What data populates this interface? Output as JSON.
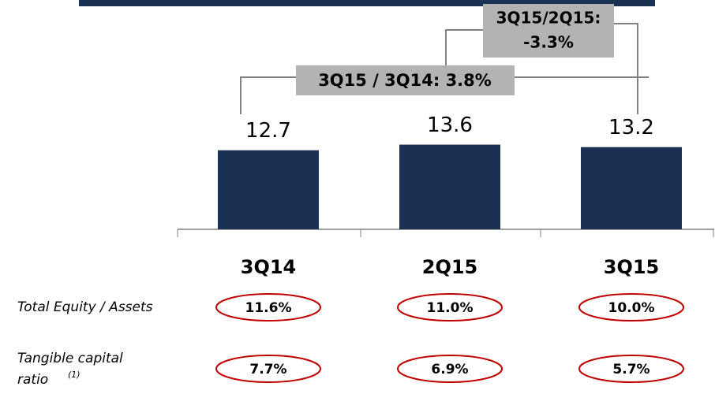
{
  "chart_data": {
    "type": "bar",
    "categories": [
      "3Q14",
      "2Q15",
      "3Q15"
    ],
    "values": [
      12.7,
      13.6,
      13.2
    ],
    "color": "#1b3154",
    "annotations": [
      {
        "lines": [
          "3Q15/2Q15:",
          "-3.3%"
        ]
      },
      {
        "lines": [
          "3Q15 / 3Q14: 3.8%"
        ]
      }
    ],
    "rows": [
      {
        "label": "Total Equity / Assets",
        "values": [
          11.6,
          11.0,
          10.0
        ],
        "value_labels": [
          "11.6%",
          "11.0%",
          "10.0%"
        ]
      },
      {
        "label": "Tangible capital ratio",
        "note": "(1)",
        "values": [
          7.7,
          6.9,
          5.7
        ],
        "value_labels": [
          "7.7%",
          "6.9%",
          "5.7%"
        ]
      }
    ]
  }
}
